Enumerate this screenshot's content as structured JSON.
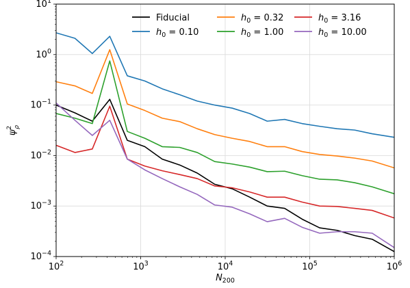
{
  "chart_data": {
    "type": "line",
    "xlabel": "N200",
    "ylabel": "ψ²ρ",
    "x_scale": "log",
    "y_scale": "log",
    "xlim": [
      100,
      1000000
    ],
    "ylim": [
      0.0001,
      10
    ],
    "grid": true,
    "legend_position": "top-right",
    "legend_columns": 3,
    "x_ticks": [
      {
        "value": 100,
        "base": "10",
        "exp": "2"
      },
      {
        "value": 1000,
        "base": "10",
        "exp": "3"
      },
      {
        "value": 10000,
        "base": "10",
        "exp": "4"
      },
      {
        "value": 100000,
        "base": "10",
        "exp": "5"
      },
      {
        "value": 1000000,
        "base": "10",
        "exp": "6"
      }
    ],
    "y_ticks": [
      {
        "value": 0.0001,
        "base": "10",
        "exp": "−4"
      },
      {
        "value": 0.001,
        "base": "10",
        "exp": "−3"
      },
      {
        "value": 0.01,
        "base": "10",
        "exp": "−2"
      },
      {
        "value": 0.1,
        "base": "10",
        "exp": "−1"
      },
      {
        "value": 1,
        "base": "10",
        "exp": "0"
      },
      {
        "value": 10,
        "base": "10",
        "exp": "1"
      }
    ],
    "x": [
      100,
      167,
      268,
      431,
      695,
      1120,
      1800,
      2900,
      4670,
      7520,
      12100,
      19500,
      31400,
      50500,
      81300,
      131000,
      211000,
      340000,
      548000,
      1000000
    ],
    "series": [
      {
        "name": "Fiducial",
        "name_main": "Fiducial",
        "name_sub": "",
        "name_rest": "",
        "color": "#000000",
        "values": [
          0.1,
          0.07,
          0.048,
          0.13,
          0.02,
          0.015,
          0.0085,
          0.0065,
          0.0045,
          0.0027,
          0.0022,
          0.0015,
          0.001,
          0.0009,
          0.00055,
          0.00037,
          0.00033,
          0.00026,
          0.00022,
          0.000125
        ]
      },
      {
        "name": "h0 = 0.10",
        "name_main": "h",
        "name_sub": "0",
        "name_rest": " = 0.10",
        "color": "#1f77b4",
        "values": [
          2.7,
          2.1,
          1.05,
          2.3,
          0.38,
          0.3,
          0.21,
          0.16,
          0.12,
          0.1,
          0.087,
          0.068,
          0.048,
          0.052,
          0.043,
          0.038,
          0.034,
          0.032,
          0.027,
          0.023
        ]
      },
      {
        "name": "h0 = 0.32",
        "name_main": "h",
        "name_sub": "0",
        "name_rest": " = 0.32",
        "color": "#ff7f0e",
        "values": [
          0.29,
          0.24,
          0.17,
          1.25,
          0.105,
          0.078,
          0.055,
          0.047,
          0.034,
          0.026,
          0.022,
          0.019,
          0.015,
          0.015,
          0.012,
          0.0105,
          0.0098,
          0.0089,
          0.0078,
          0.0057
        ]
      },
      {
        "name": "h0 = 1.00",
        "name_main": "h",
        "name_sub": "0",
        "name_rest": " = 1.00",
        "color": "#2ca02c",
        "values": [
          0.068,
          0.055,
          0.043,
          0.75,
          0.03,
          0.022,
          0.015,
          0.0145,
          0.0115,
          0.0076,
          0.0068,
          0.0059,
          0.0048,
          0.0049,
          0.004,
          0.0034,
          0.0033,
          0.0029,
          0.0024,
          0.00175
        ]
      },
      {
        "name": "h0 = 3.16",
        "name_main": "h",
        "name_sub": "0",
        "name_rest": " = 3.16",
        "color": "#d62728",
        "values": [
          0.016,
          0.0115,
          0.0135,
          0.095,
          0.0085,
          0.0062,
          0.005,
          0.0042,
          0.0035,
          0.0025,
          0.0023,
          0.0019,
          0.0015,
          0.0015,
          0.0012,
          0.001,
          0.00098,
          0.0009,
          0.00082,
          0.00058
        ]
      },
      {
        "name": "h0 = 10.00",
        "name_main": "h",
        "name_sub": "0",
        "name_rest": " = 10.00",
        "color": "#9467bd",
        "values": [
          0.11,
          0.05,
          0.025,
          0.05,
          0.0085,
          0.0052,
          0.0035,
          0.0024,
          0.0017,
          0.00105,
          0.00095,
          0.0007,
          0.00049,
          0.00057,
          0.00038,
          0.00029,
          0.00031,
          0.00031,
          0.00029,
          0.00015
        ]
      }
    ]
  }
}
